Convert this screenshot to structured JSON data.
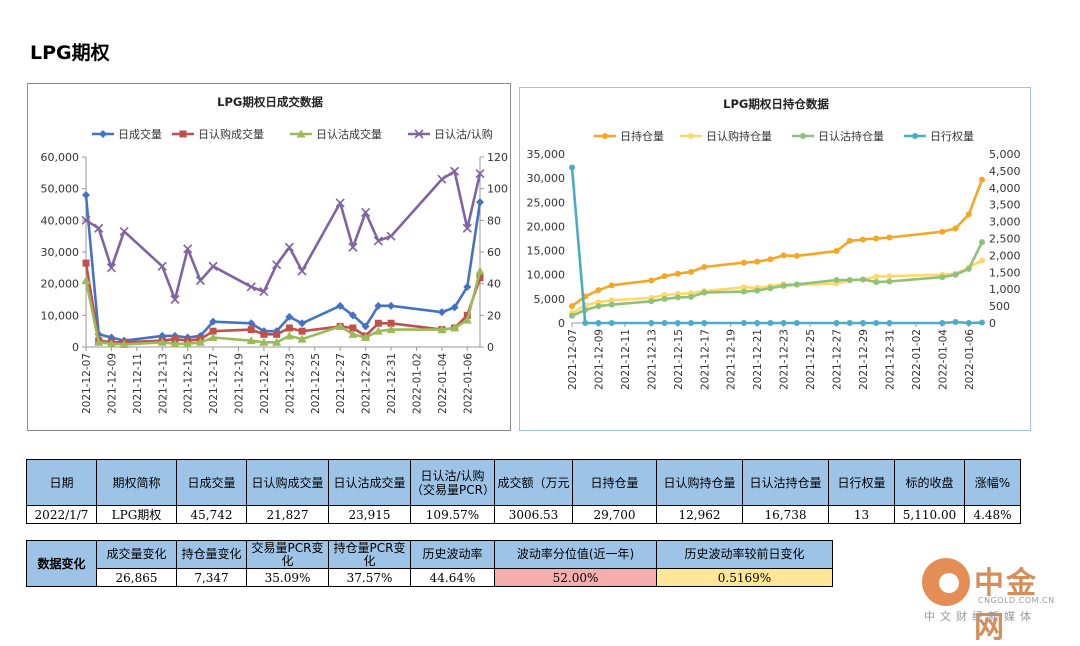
{
  "page_title": "LPG期权",
  "chart_data": [
    {
      "type": "line",
      "title": "LPG期权日成交数据",
      "categories": [
        "2021-12-07",
        "2021-12-08",
        "2021-12-09",
        "2021-12-10",
        "2021-12-13",
        "2021-12-14",
        "2021-12-15",
        "2021-12-16",
        "2021-12-17",
        "2021-12-20",
        "2021-12-21",
        "2021-12-22",
        "2021-12-23",
        "2021-12-24",
        "2021-12-27",
        "2021-12-28",
        "2021-12-29",
        "2021-12-30",
        "2021-12-31",
        "2022-01-04",
        "2022-01-05",
        "2022-01-06",
        "2022-01-07"
      ],
      "x_tick_labels": [
        "2021-12-07",
        "2021-12-09",
        "2021-12-11",
        "2021-12-13",
        "2021-12-15",
        "2021-12-17",
        "2021-12-19",
        "2021-12-21",
        "2021-12-23",
        "2021-12-25",
        "2021-12-27",
        "2021-12-29",
        "2021-12-31",
        "2022-01-02",
        "2022-01-04",
        "2022-01-06"
      ],
      "x_ticks_days": [
        0,
        2,
        4,
        6,
        8,
        10,
        12,
        14,
        16,
        18,
        20,
        22,
        24,
        26,
        28,
        30
      ],
      "x_days": [
        0,
        1,
        2,
        3,
        6,
        7,
        8,
        9,
        10,
        13,
        14,
        15,
        16,
        17,
        20,
        21,
        22,
        23,
        24,
        28,
        29,
        30,
        31
      ],
      "y_left": {
        "ylim": [
          0,
          60000
        ],
        "ticks": [
          0,
          10000,
          20000,
          30000,
          40000,
          50000,
          60000
        ],
        "tick_labels": [
          "0",
          "10,000",
          "20,000",
          "30,000",
          "40,000",
          "50,000",
          "60,000"
        ]
      },
      "y_right": {
        "ylim": [
          0,
          120
        ],
        "ticks": [
          0,
          20,
          40,
          60,
          80,
          100,
          120
        ],
        "tick_labels": [
          "0",
          "20",
          "40",
          "60",
          "80",
          "100",
          "120"
        ]
      },
      "legend_position": "top",
      "series": [
        {
          "name": "日成交量",
          "axis": "left",
          "color": "#4472c4",
          "marker": "diamond",
          "values": [
            48000,
            4000,
            3000,
            2000,
            3500,
            3500,
            3000,
            3500,
            8000,
            7500,
            5000,
            5000,
            9500,
            7500,
            13000,
            10000,
            6500,
            13000,
            13000,
            11000,
            12500,
            19000,
            45742
          ]
        },
        {
          "name": "日认购成交量",
          "axis": "left",
          "color": "#c0504d",
          "marker": "square",
          "values": [
            26500,
            2000,
            1500,
            1500,
            2000,
            2500,
            2000,
            2500,
            5000,
            5500,
            4000,
            4000,
            6000,
            5000,
            6500,
            6000,
            3500,
            7500,
            7500,
            5500,
            6000,
            10000,
            21827
          ]
        },
        {
          "name": "日认沽成交量",
          "axis": "left",
          "color": "#9bbb59",
          "marker": "triangle",
          "values": [
            21000,
            1500,
            1000,
            800,
            1500,
            1000,
            1000,
            1500,
            3000,
            2000,
            1500,
            1500,
            3500,
            2500,
            6500,
            4000,
            3000,
            5000,
            5500,
            5500,
            6000,
            8500,
            23915
          ]
        },
        {
          "name": "日认沽/认购",
          "axis": "right",
          "color": "#8064a2",
          "marker": "x",
          "values": [
            80,
            75,
            50,
            73,
            51,
            30,
            62,
            42,
            51,
            38,
            35,
            52,
            63,
            48,
            91,
            63,
            85,
            67,
            70,
            106,
            111,
            75,
            109.57
          ]
        }
      ]
    },
    {
      "type": "line",
      "title": "LPG期权日持仓数据",
      "categories": [
        "2021-12-07",
        "2021-12-08",
        "2021-12-09",
        "2021-12-10",
        "2021-12-13",
        "2021-12-14",
        "2021-12-15",
        "2021-12-16",
        "2021-12-17",
        "2021-12-20",
        "2021-12-21",
        "2021-12-22",
        "2021-12-23",
        "2021-12-24",
        "2021-12-27",
        "2021-12-28",
        "2021-12-29",
        "2021-12-30",
        "2021-12-31",
        "2022-01-04",
        "2022-01-05",
        "2022-01-06",
        "2022-01-07"
      ],
      "x_tick_labels": [
        "2021-12-07",
        "2021-12-09",
        "2021-12-11",
        "2021-12-13",
        "2021-12-15",
        "2021-12-17",
        "2021-12-19",
        "2021-12-21",
        "2021-12-23",
        "2021-12-25",
        "2021-12-27",
        "2021-12-29",
        "2021-12-31",
        "2022-01-02",
        "2022-01-04",
        "2022-01-06"
      ],
      "x_ticks_days": [
        0,
        2,
        4,
        6,
        8,
        10,
        12,
        14,
        16,
        18,
        20,
        22,
        24,
        26,
        28,
        30
      ],
      "x_days": [
        0,
        1,
        2,
        3,
        6,
        7,
        8,
        9,
        10,
        13,
        14,
        15,
        16,
        17,
        20,
        21,
        22,
        23,
        24,
        28,
        29,
        30,
        31
      ],
      "y_left": {
        "ylim": [
          0,
          35000
        ],
        "ticks": [
          0,
          5000,
          10000,
          15000,
          20000,
          25000,
          30000,
          35000
        ],
        "tick_labels": [
          "0",
          "5,000",
          "10,000",
          "15,000",
          "20,000",
          "25,000",
          "30,000",
          "35,000"
        ]
      },
      "y_right": {
        "ylim": [
          0,
          5000
        ],
        "ticks": [
          0,
          500,
          1000,
          1500,
          2000,
          2500,
          3000,
          3500,
          4000,
          4500,
          5000
        ],
        "tick_labels": [
          "0",
          "500",
          "1,000",
          "1,500",
          "2,000",
          "2,500",
          "3,000",
          "3,500",
          "4,000",
          "4,500",
          "5,000"
        ]
      },
      "legend_position": "top",
      "series": [
        {
          "name": "日持仓量",
          "axis": "left",
          "color": "#f5a623",
          "marker": "circle",
          "values": [
            3500,
            5500,
            6800,
            7800,
            8800,
            9700,
            10200,
            10600,
            11600,
            12500,
            12700,
            13200,
            14000,
            13900,
            14900,
            17000,
            17300,
            17500,
            17700,
            18900,
            19600,
            22500,
            29700
          ]
        },
        {
          "name": "日认购持仓量",
          "axis": "left",
          "color": "#ffd966",
          "marker": "circle",
          "values": [
            2000,
            3700,
            4300,
            4700,
            5200,
            5800,
            6000,
            6200,
            6600,
            7400,
            7300,
            7600,
            8100,
            7900,
            8200,
            8800,
            9000,
            9600,
            9700,
            10000,
            10200,
            11500,
            12962
          ]
        },
        {
          "name": "日认沽持仓量",
          "axis": "left",
          "color": "#8fc17a",
          "marker": "circle",
          "values": [
            1500,
            2700,
            3500,
            3800,
            4500,
            5000,
            5300,
            5400,
            6300,
            6500,
            6700,
            7200,
            7700,
            8000,
            8900,
            8900,
            9000,
            8500,
            8600,
            9500,
            10000,
            11200,
            16738
          ]
        },
        {
          "name": "日行权量",
          "axis": "right",
          "color": "#4bacc6",
          "marker": "circle",
          "values": [
            4600,
            0,
            0,
            0,
            0,
            0,
            0,
            0,
            0,
            0,
            0,
            0,
            0,
            0,
            0,
            0,
            0,
            0,
            0,
            0,
            30,
            0,
            13
          ]
        }
      ]
    }
  ],
  "table1": {
    "headers": [
      "日期",
      "期权简称",
      "日成交量",
      "日认购成交量",
      "日认沽成交量",
      "日认沽/认购（交易量PCR）",
      "成交额（万元",
      "日持仓量",
      "日认购持仓量",
      "日认沽持仓量",
      "日行权量",
      "标的收盘",
      "涨幅%"
    ],
    "values": [
      "2022/1/7",
      "LPG期权",
      "45,742",
      "21,827",
      "23,915",
      "109.57%",
      "3006.53",
      "29,700",
      "12,962",
      "16,738",
      "13",
      "5,110.00",
      "4.48%"
    ]
  },
  "table2": {
    "label": "数据变化",
    "headers": [
      "成交量变化",
      "持仓量变化",
      "交易量PCR变化",
      "持仓量PCR变化",
      "历史波动率",
      "波动率分位值(近一年)",
      "历史波动率较前日变化"
    ],
    "values": [
      "26,865",
      "7,347",
      "35.09%",
      "37.57%",
      "44.64%",
      "52.00%",
      "0.5169%"
    ],
    "highlight_colors": {
      "percentile": "#f4aeae",
      "vol_change": "#ffe699"
    }
  },
  "watermark": {
    "name": "中金网",
    "url": "CNGOLD.COM.CN",
    "slogan": "中文财经新媒体",
    "color": "#d07a3b"
  }
}
